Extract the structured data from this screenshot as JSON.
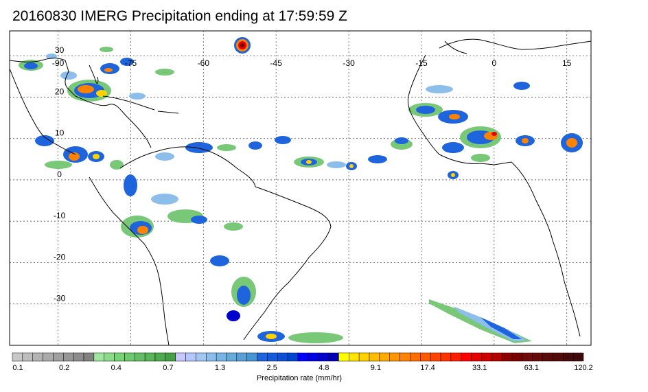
{
  "title": "20160830 IMERG Precipitation ending at 17:59:59 Z",
  "map": {
    "lon_range": [
      -100,
      20
    ],
    "lat_range": [
      -40,
      36
    ],
    "lon_ticks": [
      "-90",
      "-75",
      "-60",
      "-45",
      "-30",
      "-15",
      "0",
      "15"
    ],
    "lon_tick_values": [
      -90,
      -75,
      -60,
      -45,
      -30,
      -15,
      0,
      15
    ],
    "lat_ticks": [
      "30",
      "20",
      "10",
      "0",
      "-10",
      "-20",
      "-30"
    ],
    "lat_tick_values": [
      30,
      20,
      10,
      0,
      -10,
      -20,
      -30
    ],
    "grid": true,
    "coastline_color": "#000000"
  },
  "colorbar": {
    "label": "Precipitation rate (mm/hr)",
    "tick_labels": [
      "0.1",
      "0.2",
      "0.4",
      "0.7",
      "1.3",
      "2.5",
      "4.8",
      "9.1",
      "17.4",
      "33.1",
      "63.1",
      "120.2"
    ],
    "colors": [
      "#c8c8c8",
      "#bebebe",
      "#b4b4b4",
      "#aaaaaa",
      "#a0a0a0",
      "#969696",
      "#8c8c8c",
      "#828282",
      "#a0e6a0",
      "#8cdc8c",
      "#78d278",
      "#6ec86e",
      "#64be64",
      "#5ab45a",
      "#50aa50",
      "#46a046",
      "#c8c8ff",
      "#b4c8ff",
      "#a0c8f0",
      "#8cbeeb",
      "#78b4e6",
      "#64aadc",
      "#5aa0d7",
      "#4696d2",
      "#1e64dc",
      "#145adc",
      "#0a50d7",
      "#0046d2",
      "#0000ff",
      "#0000e6",
      "#0000cd",
      "#0000b4",
      "#ffff00",
      "#ffe600",
      "#ffd200",
      "#ffbe00",
      "#ffaa00",
      "#ff9600",
      "#ff8200",
      "#ff6e00",
      "#ff5a00",
      "#ff4600",
      "#ff3200",
      "#ff1e00",
      "#ff0000",
      "#e60000",
      "#cd0000",
      "#b40000",
      "#8c0000",
      "#780000",
      "#6e0a0a",
      "#640a0a",
      "#5a0a0a",
      "#500a0a",
      "#460a0a",
      "#3c0a0a"
    ]
  },
  "rain_colors": {
    "light": "#78c878",
    "lightblue": "#8cbeeb",
    "blue": "#1e64dc",
    "deep": "#0000cd",
    "yellow": "#ffd200",
    "orange": "#ff8200",
    "red": "#e60000"
  }
}
